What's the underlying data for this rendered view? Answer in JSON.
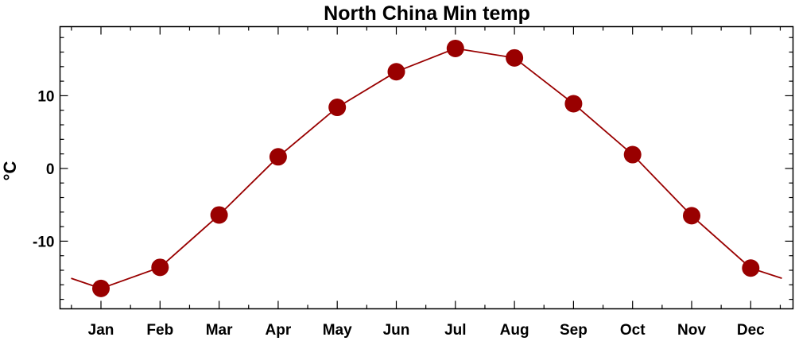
{
  "chart_data": {
    "type": "line",
    "title": "North China Min temp",
    "xlabel": "",
    "ylabel": "°C",
    "categories": [
      "Jan",
      "Feb",
      "Mar",
      "Apr",
      "May",
      "Jun",
      "Jul",
      "Aug",
      "Sep",
      "Oct",
      "Nov",
      "Dec"
    ],
    "series": [
      {
        "values": [
          -16.5,
          -13.6,
          -6.4,
          1.6,
          8.4,
          13.3,
          16.5,
          15.2,
          8.9,
          1.9,
          -6.5,
          -13.7
        ]
      }
    ],
    "edge_values": {
      "before_jan": -15.1,
      "after_dec": -15.1
    },
    "ylim": [
      -19.3,
      19.5
    ],
    "yticks": [
      -10,
      0,
      10
    ],
    "yticks_labels": [
      "-10",
      "0",
      "10"
    ],
    "line_color": "#990000",
    "marker_color": "#990000",
    "grid": false,
    "legend": "none"
  }
}
